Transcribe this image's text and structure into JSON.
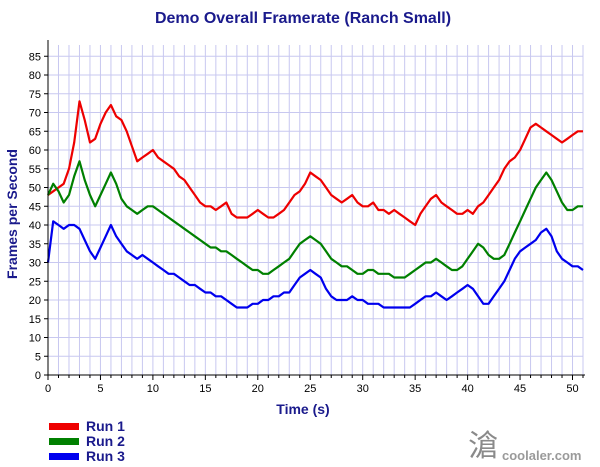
{
  "chart_data": {
    "type": "line",
    "title": "Demo Overall Framerate (Ranch Small)",
    "xlabel": "Time (s)",
    "ylabel": "Frames per Second",
    "xlim": [
      0,
      51
    ],
    "ylim": [
      0,
      88
    ],
    "xticks": [
      0,
      5,
      10,
      15,
      20,
      25,
      30,
      35,
      40,
      45,
      50
    ],
    "yticks": [
      0,
      5,
      10,
      15,
      20,
      25,
      30,
      35,
      40,
      45,
      50,
      55,
      60,
      65,
      70,
      75,
      80,
      85
    ],
    "grid": true,
    "legend_position": "bottom-left",
    "series": [
      {
        "name": "Run 1",
        "color": "#ee0000",
        "x": [
          0,
          0.5,
          1,
          1.5,
          2,
          2.5,
          3,
          3.5,
          4,
          4.5,
          5,
          5.5,
          6,
          6.5,
          7,
          7.5,
          8,
          8.5,
          9,
          9.5,
          10,
          10.5,
          11,
          11.5,
          12,
          12.5,
          13,
          13.5,
          14,
          14.5,
          15,
          15.5,
          16,
          16.5,
          17,
          17.5,
          18,
          18.5,
          19,
          19.5,
          20,
          20.5,
          21,
          21.5,
          22,
          22.5,
          23,
          23.5,
          24,
          24.5,
          25,
          25.5,
          26,
          26.5,
          27,
          27.5,
          28,
          28.5,
          29,
          29.5,
          30,
          30.5,
          31,
          31.5,
          32,
          32.5,
          33,
          33.5,
          34,
          34.5,
          35,
          35.5,
          36,
          36.5,
          37,
          37.5,
          38,
          38.5,
          39,
          39.5,
          40,
          40.5,
          41,
          41.5,
          42,
          42.5,
          43,
          43.5,
          44,
          44.5,
          45,
          45.5,
          46,
          46.5,
          47,
          47.5,
          48,
          48.5,
          49,
          49.5,
          50,
          50.5,
          51
        ],
        "values": [
          48,
          49,
          50,
          51,
          55,
          62,
          73,
          68,
          62,
          63,
          67,
          70,
          72,
          69,
          68,
          65,
          61,
          57,
          58,
          59,
          60,
          58,
          57,
          56,
          55,
          53,
          52,
          50,
          48,
          46,
          45,
          45,
          44,
          45,
          46,
          43,
          42,
          42,
          42,
          43,
          44,
          43,
          42,
          42,
          43,
          44,
          46,
          48,
          49,
          51,
          54,
          53,
          52,
          50,
          48,
          47,
          46,
          47,
          48,
          46,
          45,
          45,
          46,
          44,
          44,
          43,
          44,
          43,
          42,
          41,
          40,
          43,
          45,
          47,
          48,
          46,
          45,
          44,
          43,
          43,
          44,
          43,
          45,
          46,
          48,
          50,
          52,
          55,
          57,
          58,
          60,
          63,
          66,
          67,
          66,
          65,
          64,
          63,
          62,
          63,
          64,
          65,
          65
        ]
      },
      {
        "name": "Run 2",
        "color": "#008000",
        "x": [
          0,
          0.5,
          1,
          1.5,
          2,
          2.5,
          3,
          3.5,
          4,
          4.5,
          5,
          5.5,
          6,
          6.5,
          7,
          7.5,
          8,
          8.5,
          9,
          9.5,
          10,
          10.5,
          11,
          11.5,
          12,
          12.5,
          13,
          13.5,
          14,
          14.5,
          15,
          15.5,
          16,
          16.5,
          17,
          17.5,
          18,
          18.5,
          19,
          19.5,
          20,
          20.5,
          21,
          21.5,
          22,
          22.5,
          23,
          23.5,
          24,
          24.5,
          25,
          25.5,
          26,
          26.5,
          27,
          27.5,
          28,
          28.5,
          29,
          29.5,
          30,
          30.5,
          31,
          31.5,
          32,
          32.5,
          33,
          33.5,
          34,
          34.5,
          35,
          35.5,
          36,
          36.5,
          37,
          37.5,
          38,
          38.5,
          39,
          39.5,
          40,
          40.5,
          41,
          41.5,
          42,
          42.5,
          43,
          43.5,
          44,
          44.5,
          45,
          45.5,
          46,
          46.5,
          47,
          47.5,
          48,
          48.5,
          49,
          49.5,
          50,
          50.5,
          51
        ],
        "values": [
          48,
          51,
          49,
          46,
          48,
          53,
          57,
          52,
          48,
          45,
          48,
          51,
          54,
          51,
          47,
          45,
          44,
          43,
          44,
          45,
          45,
          44,
          43,
          42,
          41,
          40,
          39,
          38,
          37,
          36,
          35,
          34,
          34,
          33,
          33,
          32,
          31,
          30,
          29,
          28,
          28,
          27,
          27,
          28,
          29,
          30,
          31,
          33,
          35,
          36,
          37,
          36,
          35,
          33,
          31,
          30,
          29,
          29,
          28,
          27,
          27,
          28,
          28,
          27,
          27,
          27,
          26,
          26,
          26,
          27,
          28,
          29,
          30,
          30,
          31,
          30,
          29,
          28,
          28,
          29,
          31,
          33,
          35,
          34,
          32,
          31,
          31,
          32,
          35,
          38,
          41,
          44,
          47,
          50,
          52,
          54,
          52,
          49,
          46,
          44,
          44,
          45,
          45
        ]
      },
      {
        "name": "Run 3",
        "color": "#0000ee",
        "x": [
          0,
          0.5,
          1,
          1.5,
          2,
          2.5,
          3,
          3.5,
          4,
          4.5,
          5,
          5.5,
          6,
          6.5,
          7,
          7.5,
          8,
          8.5,
          9,
          9.5,
          10,
          10.5,
          11,
          11.5,
          12,
          12.5,
          13,
          13.5,
          14,
          14.5,
          15,
          15.5,
          16,
          16.5,
          17,
          17.5,
          18,
          18.5,
          19,
          19.5,
          20,
          20.5,
          21,
          21.5,
          22,
          22.5,
          23,
          23.5,
          24,
          24.5,
          25,
          25.5,
          26,
          26.5,
          27,
          27.5,
          28,
          28.5,
          29,
          29.5,
          30,
          30.5,
          31,
          31.5,
          32,
          32.5,
          33,
          33.5,
          34,
          34.5,
          35,
          35.5,
          36,
          36.5,
          37,
          37.5,
          38,
          38.5,
          39,
          39.5,
          40,
          40.5,
          41,
          41.5,
          42,
          42.5,
          43,
          43.5,
          44,
          44.5,
          45,
          45.5,
          46,
          46.5,
          47,
          47.5,
          48,
          48.5,
          49,
          49.5,
          50,
          50.5,
          51
        ],
        "values": [
          30,
          41,
          40,
          39,
          40,
          40,
          39,
          36,
          33,
          31,
          34,
          37,
          40,
          37,
          35,
          33,
          32,
          31,
          32,
          31,
          30,
          29,
          28,
          27,
          27,
          26,
          25,
          24,
          24,
          23,
          22,
          22,
          21,
          21,
          20,
          19,
          18,
          18,
          18,
          19,
          19,
          20,
          20,
          21,
          21,
          22,
          22,
          24,
          26,
          27,
          28,
          27,
          26,
          23,
          21,
          20,
          20,
          20,
          21,
          20,
          20,
          19,
          19,
          19,
          18,
          18,
          18,
          18,
          18,
          18,
          19,
          20,
          21,
          21,
          22,
          21,
          20,
          21,
          22,
          23,
          24,
          23,
          21,
          19,
          19,
          21,
          23,
          25,
          28,
          31,
          33,
          34,
          35,
          36,
          38,
          39,
          37,
          33,
          31,
          30,
          29,
          29,
          28
        ]
      }
    ]
  },
  "watermark": {
    "text": "coolaler.com",
    "glyph": "滄"
  }
}
